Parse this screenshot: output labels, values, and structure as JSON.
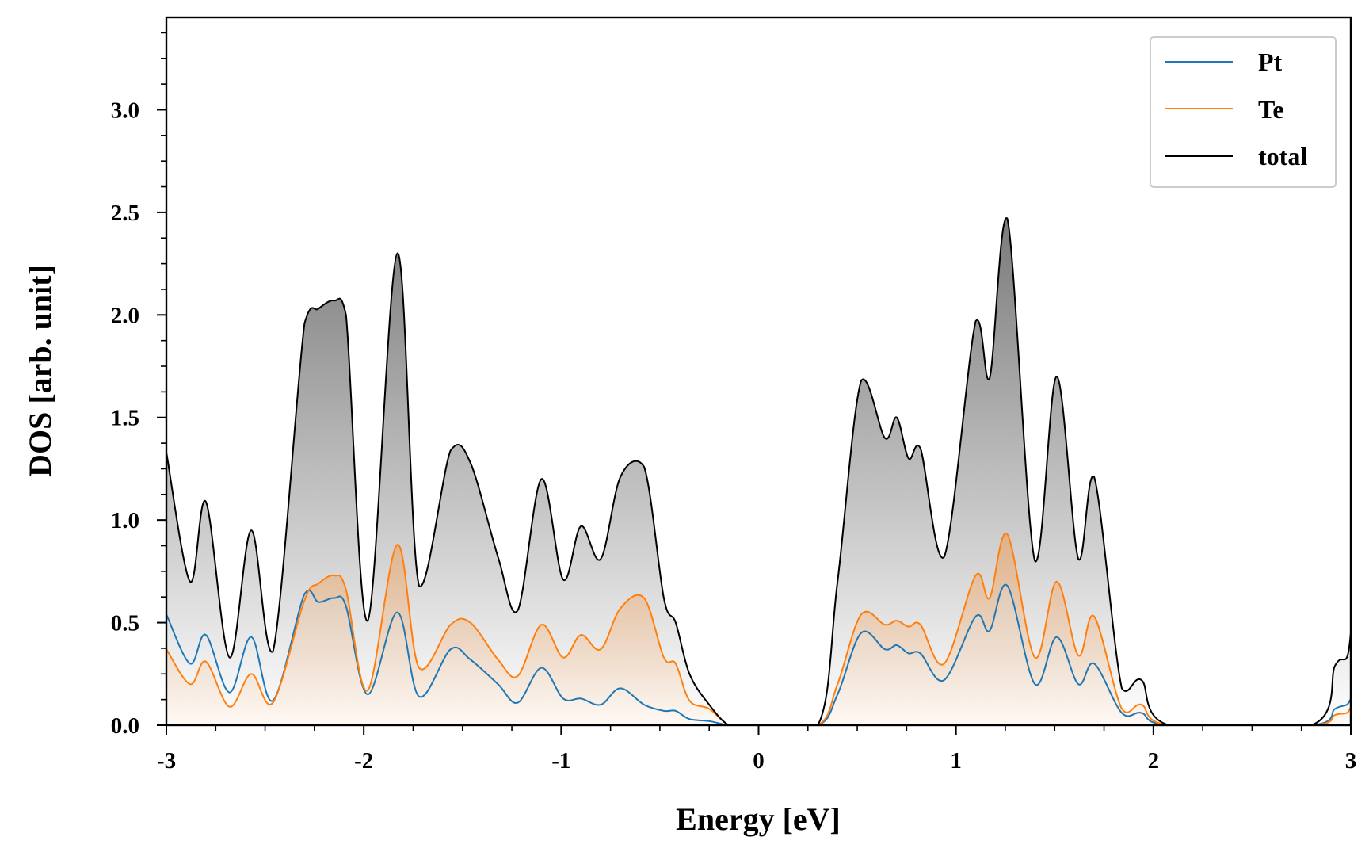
{
  "chart_data": {
    "type": "line",
    "title": "",
    "xlabel": "Energy [eV]",
    "ylabel": "DOS [arb. unit]",
    "xlim": [
      -3,
      3
    ],
    "ylim": [
      0,
      3.45
    ],
    "xticks": [
      -3,
      -2,
      -1,
      0,
      1,
      2,
      3
    ],
    "xtick_labels": [
      "-3",
      "-2",
      "-1",
      "0",
      "1",
      "2",
      "3"
    ],
    "yticks": [
      0,
      0.5,
      1,
      1.5,
      2,
      2.5,
      3
    ],
    "ytick_labels": [
      "0.0",
      "0.5",
      "1.0",
      "1.5",
      "2.0",
      "2.5",
      "3.0"
    ],
    "legend_position": "top-right",
    "series": [
      {
        "name": "Pt",
        "color": "#1f77b4",
        "x": [
          -3.0,
          -2.88,
          -2.8,
          -2.68,
          -2.57,
          -2.46,
          -2.3,
          -2.23,
          -2.15,
          -2.09,
          -1.98,
          -1.83,
          -1.72,
          -1.56,
          -1.46,
          -1.32,
          -1.22,
          -1.1,
          -0.99,
          -0.9,
          -0.8,
          -0.7,
          -0.58,
          -0.48,
          -0.42,
          -0.35,
          -0.25,
          -0.15,
          -0.05,
          0.0,
          0.3,
          0.4,
          0.52,
          0.64,
          0.7,
          0.76,
          0.82,
          0.94,
          1.1,
          1.17,
          1.26,
          1.4,
          1.51,
          1.62,
          1.7,
          1.84,
          1.94,
          2.08,
          2.8,
          2.92,
          2.98,
          3.0
        ],
        "values": [
          0.54,
          0.3,
          0.44,
          0.16,
          0.43,
          0.12,
          0.64,
          0.6,
          0.62,
          0.58,
          0.15,
          0.55,
          0.14,
          0.37,
          0.32,
          0.2,
          0.11,
          0.28,
          0.13,
          0.13,
          0.1,
          0.18,
          0.1,
          0.07,
          0.07,
          0.03,
          0.02,
          0.0,
          0.0,
          0.0,
          0.0,
          0.15,
          0.45,
          0.37,
          0.39,
          0.35,
          0.35,
          0.22,
          0.53,
          0.46,
          0.68,
          0.2,
          0.43,
          0.2,
          0.3,
          0.06,
          0.06,
          0.0,
          0.0,
          0.08,
          0.1,
          0.13
        ]
      },
      {
        "name": "Te",
        "color": "#ff7f0e",
        "x": [
          -3.0,
          -2.88,
          -2.8,
          -2.68,
          -2.57,
          -2.46,
          -2.3,
          -2.23,
          -2.15,
          -2.09,
          -1.98,
          -1.83,
          -1.72,
          -1.56,
          -1.46,
          -1.32,
          -1.22,
          -1.1,
          -0.99,
          -0.9,
          -0.8,
          -0.7,
          -0.58,
          -0.48,
          -0.42,
          -0.35,
          -0.25,
          -0.15,
          -0.05,
          0.0,
          0.3,
          0.4,
          0.52,
          0.64,
          0.7,
          0.76,
          0.82,
          0.94,
          1.1,
          1.17,
          1.26,
          1.4,
          1.51,
          1.62,
          1.7,
          1.84,
          1.94,
          2.08,
          2.8,
          2.92,
          2.98,
          3.0
        ],
        "values": [
          0.37,
          0.2,
          0.31,
          0.09,
          0.25,
          0.11,
          0.61,
          0.69,
          0.73,
          0.66,
          0.17,
          0.88,
          0.28,
          0.49,
          0.5,
          0.32,
          0.24,
          0.49,
          0.33,
          0.44,
          0.37,
          0.57,
          0.62,
          0.33,
          0.3,
          0.12,
          0.08,
          0.0,
          0.0,
          0.0,
          0.0,
          0.2,
          0.54,
          0.49,
          0.51,
          0.48,
          0.49,
          0.3,
          0.73,
          0.62,
          0.93,
          0.33,
          0.7,
          0.34,
          0.53,
          0.08,
          0.1,
          0.0,
          0.0,
          0.05,
          0.06,
          0.09
        ]
      },
      {
        "name": "total",
        "color": "#000000",
        "x": [
          -3.0,
          -2.88,
          -2.8,
          -2.68,
          -2.57,
          -2.46,
          -2.3,
          -2.23,
          -2.15,
          -2.09,
          -1.98,
          -1.83,
          -1.72,
          -1.56,
          -1.46,
          -1.32,
          -1.22,
          -1.1,
          -0.99,
          -0.9,
          -0.8,
          -0.7,
          -0.58,
          -0.48,
          -0.42,
          -0.35,
          -0.25,
          -0.15,
          -0.05,
          0.0,
          0.3,
          0.4,
          0.52,
          0.64,
          0.7,
          0.76,
          0.82,
          0.94,
          1.1,
          1.17,
          1.26,
          1.4,
          1.51,
          1.62,
          1.7,
          1.84,
          1.94,
          2.08,
          2.8,
          2.92,
          2.98,
          3.0
        ],
        "values": [
          1.33,
          0.7,
          1.09,
          0.33,
          0.95,
          0.36,
          1.96,
          2.03,
          2.07,
          2.0,
          0.51,
          2.3,
          0.68,
          1.34,
          1.28,
          0.82,
          0.56,
          1.2,
          0.71,
          0.97,
          0.81,
          1.21,
          1.26,
          0.62,
          0.5,
          0.25,
          0.1,
          0.0,
          0.0,
          0.0,
          0.0,
          0.7,
          1.68,
          1.4,
          1.5,
          1.3,
          1.35,
          0.82,
          1.97,
          1.69,
          2.47,
          0.8,
          1.7,
          0.81,
          1.21,
          0.18,
          0.22,
          0.0,
          0.0,
          0.29,
          0.33,
          0.45
        ]
      }
    ]
  }
}
